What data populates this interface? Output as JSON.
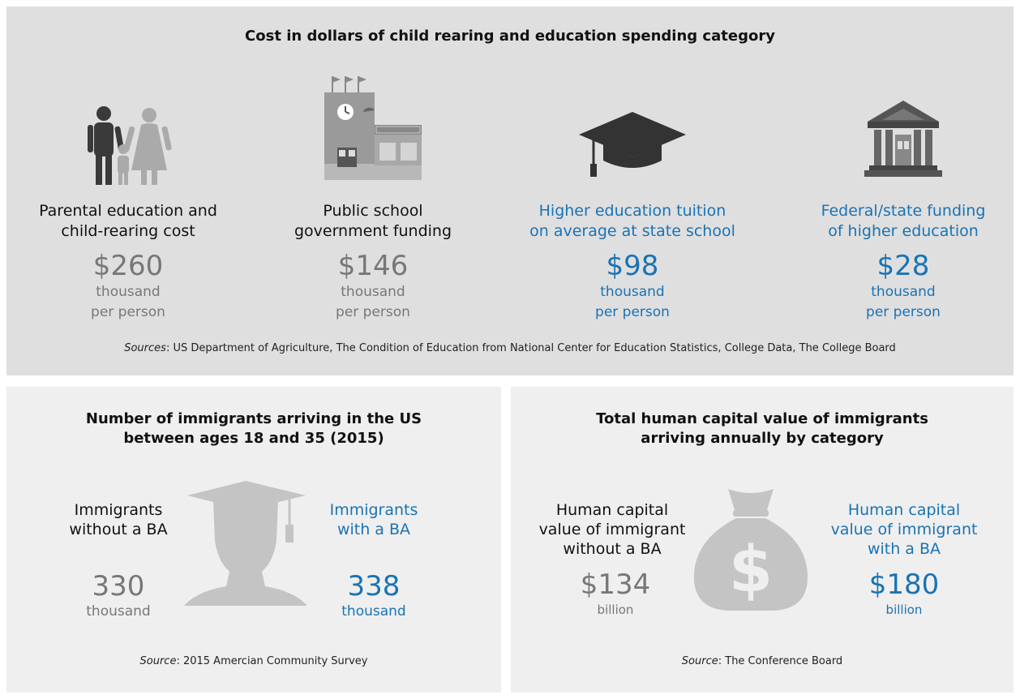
{
  "top": {
    "title": "Cost in dollars of child rearing and education spending category",
    "columns": [
      {
        "label_line1": "Parental education and",
        "label_line2": "child-rearing cost",
        "value": "$260",
        "unit1": "thousand",
        "unit2": "per person",
        "icon": "family-icon"
      },
      {
        "label_line1": "Public school",
        "label_line2": "government funding",
        "value": "$146",
        "unit1": "thousand",
        "unit2": "per person",
        "icon": "school-building-icon"
      },
      {
        "label_line1": "Higher education tuition",
        "label_line2": "on average at state school",
        "value": "$98",
        "unit1": "thousand",
        "unit2": "per person",
        "icon": "graduation-cap-icon"
      },
      {
        "label_line1": "Federal/state funding",
        "label_line2": "of higher education",
        "value": "$28",
        "unit1": "thousand",
        "unit2": "per person",
        "icon": "government-building-icon"
      }
    ],
    "source_label": "Sources",
    "source_text": ": US Department of Agriculture, The Condition of Education from National Center for Education Statistics, College Data, The College Board"
  },
  "bottom_left": {
    "title_line1": "Number of immigrants arriving in the US",
    "title_line2": "between ages 18 and 35 (2015)",
    "left": {
      "label_line1": "Immigrants",
      "label_line2": "without a BA",
      "value": "330",
      "unit": "thousand"
    },
    "right": {
      "label_line1": "Immigrants",
      "label_line2": "with a BA",
      "value": "338",
      "unit": "thousand"
    },
    "source_label": "Source",
    "source_text": ":  2015 Amercian Community Survey",
    "icon": "graduate-silhouette-icon"
  },
  "bottom_right": {
    "title_line1": "Total human capital value of immigrants",
    "title_line2": "arriving annually by category",
    "left": {
      "label_line1": "Human capital",
      "label_line2": "value of immigrant",
      "label_line3": "without a BA",
      "value": "$134",
      "unit": "billion"
    },
    "right": {
      "label_line1": "Human capital",
      "label_line2": "value of immigrant",
      "label_line3": "with a BA",
      "value": "$180",
      "unit": "billion"
    },
    "source_label": "Source",
    "source_text": ": The Conference Board",
    "icon": "money-bag-icon"
  },
  "colors": {
    "panel": "#dfdfe0",
    "panel_light": "#efefef",
    "accent_blue": "#1a73b3",
    "muted_gray": "#777777"
  }
}
